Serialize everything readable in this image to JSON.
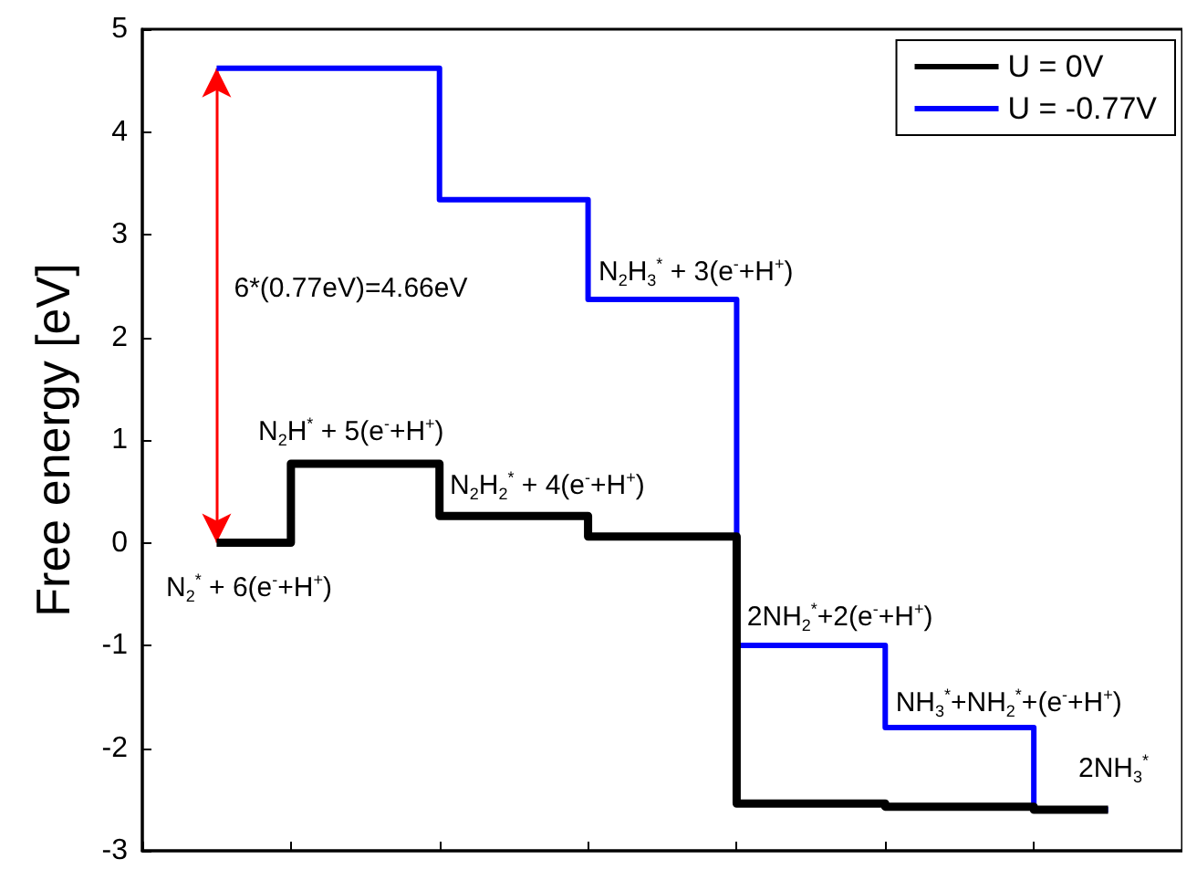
{
  "chart_data": {
    "type": "step",
    "ylabel": "Free energy [eV]",
    "categories": [
      null,
      null,
      null,
      null,
      null,
      null,
      null
    ],
    "series": [
      {
        "name": "U = 0V",
        "color": "#000000",
        "values": [
          0,
          0.77,
          0.26,
          0.06,
          -2.54,
          -2.57,
          -2.6
        ]
      },
      {
        "name": "U = -0.77V",
        "color": "#0000ff",
        "values": [
          4.62,
          4.62,
          3.34,
          2.37,
          -1.0,
          -1.8,
          -2.6
        ]
      }
    ],
    "ylim": [
      -3,
      5
    ],
    "yticks": [
      -3,
      -2,
      -1,
      0,
      1,
      2,
      3,
      4,
      5
    ],
    "tick_labels": "y",
    "grid": false,
    "legend": "top right",
    "marker": "none",
    "line_style": "solid",
    "annotations": [
      "6*(0.77eV)=4.66eV",
      "N$_{2}$$^{*}$ + 6(e$^{-}$+H$^{+}$)",
      "N$_{2}$H$^{*}$ + 5(e$^{-}$+H$^{+}$)",
      "N$_{2}$H$_{2}$$^{*}$ + 4(e$^{-}$+H$^{+}$)",
      "N$_{2}$H$_{3}$$^{*}$ + 3(e$^{-}$+H$^{+}$)",
      "2NH$_{2}$$^{*}$+2(e$^{-}$+H$^{+}$)",
      "NH$_{3}$$^{*}$+NH$_{2}$$^{*}$+(e$^{-}$+H$^{+}$)",
      "2NH$_{3}$$^{*}$"
    ]
  }
}
